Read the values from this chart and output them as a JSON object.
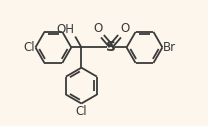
{
  "bg_color": "#fdf6ec",
  "bond_color": "#3a3a3a",
  "bond_lw": 1.3,
  "font_size": 8.5,
  "font_color": "#3a3a3a",
  "figsize": [
    2.08,
    1.26
  ],
  "dpi": 100,
  "r": 0.115,
  "xlim": [
    0.0,
    1.0
  ],
  "ylim": [
    0.04,
    0.84
  ]
}
